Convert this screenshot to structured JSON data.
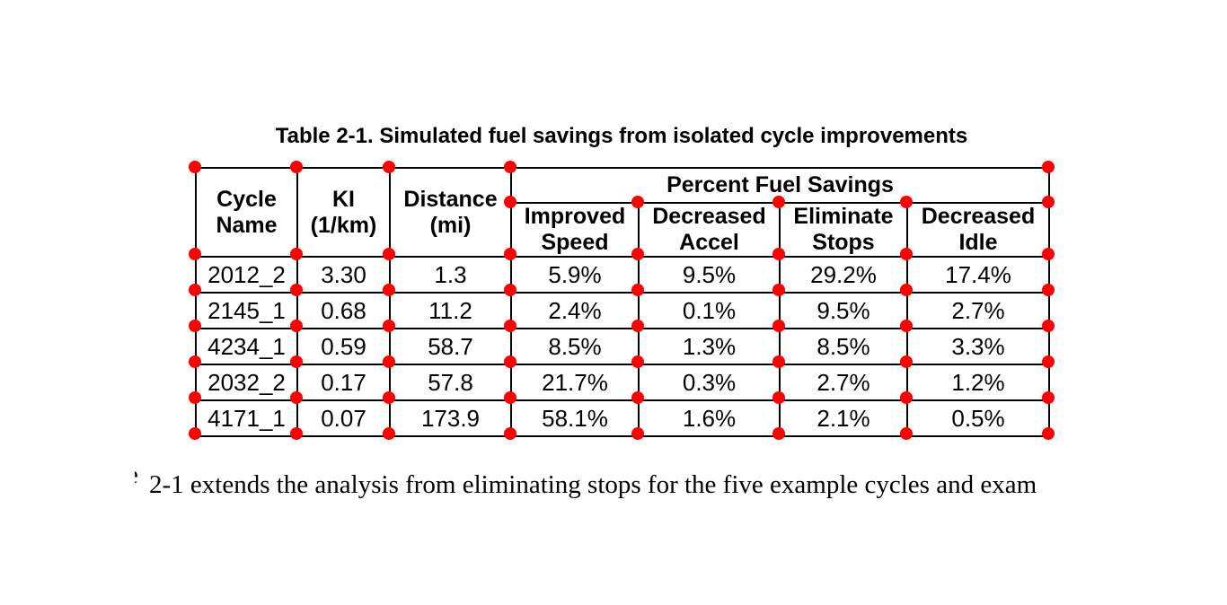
{
  "table": {
    "caption": "Table 2-1. Simulated fuel savings from isolated cycle improvements",
    "headers": {
      "cycle_name": "Cycle\nName",
      "ki": "KI\n(1/km)",
      "distance": "Distance\n(mi)",
      "group": "Percent Fuel Savings",
      "improved_speed": "Improved\nSpeed",
      "decreased_accel": "Decreased\nAccel",
      "eliminate_stops": "Eliminate\nStops",
      "decreased_idle": "Decreased\nIdle"
    },
    "rows": [
      [
        "2012_2",
        "3.30",
        "1.3",
        "5.9%",
        "9.5%",
        "29.2%",
        "17.4%"
      ],
      [
        "2145_1",
        "0.68",
        "11.2",
        "2.4%",
        "0.1%",
        "9.5%",
        "2.7%"
      ],
      [
        "4234_1",
        "0.59",
        "58.7",
        "8.5%",
        "1.3%",
        "8.5%",
        "3.3%"
      ],
      [
        "2032_2",
        "0.17",
        "57.8",
        "21.7%",
        "0.3%",
        "2.7%",
        "1.2%"
      ],
      [
        "4171_1",
        "0.07",
        "173.9",
        "58.1%",
        "1.6%",
        "2.1%",
        "0.5%"
      ]
    ]
  },
  "markers": {
    "color": "#ff0000",
    "description": "red-dot-grid-intersection-marker"
  },
  "body_text": {
    "partial_char": "e",
    "text": "2-1 extends the analysis from eliminating stops for the five example cycles and exam"
  }
}
